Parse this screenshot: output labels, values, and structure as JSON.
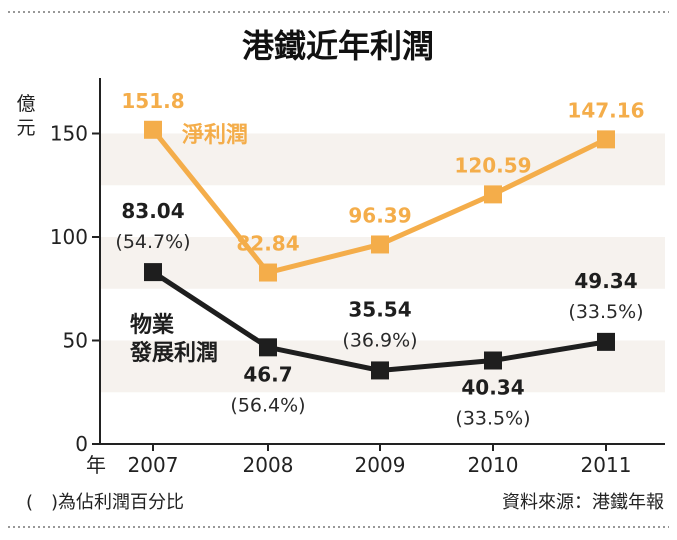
{
  "chart_data": {
    "type": "line",
    "title": "港鐵近年利潤",
    "ylabel": "億元",
    "xlabel": "年",
    "ylim": [
      0,
      170
    ],
    "yticks": [
      0,
      50,
      100,
      150
    ],
    "categories": [
      "2007",
      "2008",
      "2009",
      "2010",
      "2011"
    ],
    "series": [
      {
        "name": "淨利潤",
        "color": "#f4ad4a",
        "values": [
          151.8,
          82.84,
          96.39,
          120.59,
          147.16
        ],
        "labels": [
          "151.8",
          "82.84",
          "96.39",
          "120.59",
          "147.16"
        ]
      },
      {
        "name": "物業發展利潤",
        "name_lines": [
          "物業",
          "發展利潤"
        ],
        "color": "#1e1e1e",
        "values": [
          83.04,
          46.7,
          35.54,
          40.34,
          49.34
        ],
        "labels": [
          "83.04",
          "46.7",
          "35.54",
          "40.34",
          "49.34"
        ],
        "percent_labels": [
          "(54.7%)",
          "(56.4%)",
          "(36.9%)",
          "(33.5%)",
          "(33.5%)"
        ]
      }
    ],
    "grid": "alternating bands",
    "footnote": "(　)為佔利潤百分比",
    "source": "資料來源：港鐵年報"
  }
}
